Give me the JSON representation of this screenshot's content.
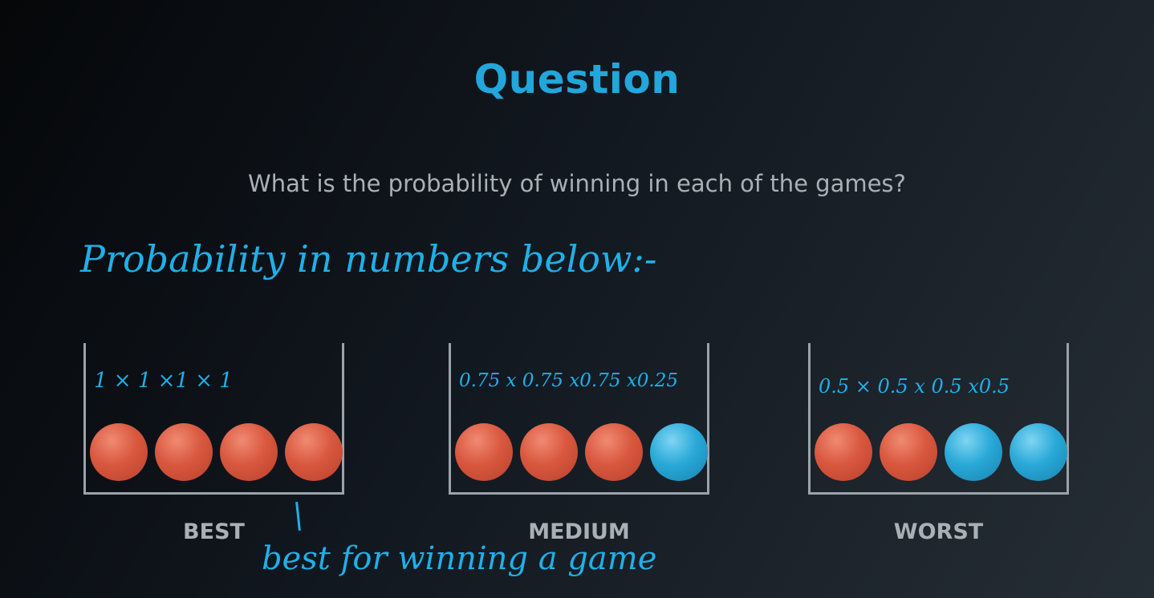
{
  "slide": {
    "title": "Question",
    "question": "What is the probability of winning in each of the games?"
  },
  "annotations": {
    "heading": "Probability in numbers below:-",
    "note": "best for winning a game"
  },
  "buckets": [
    {
      "label": "BEST",
      "handwritten": "1 × 1 ×1 × 1",
      "balls": [
        "red",
        "red",
        "red",
        "red"
      ]
    },
    {
      "label": "MEDIUM",
      "handwritten": "0.75 x 0.75 x0.75 x0.25",
      "balls": [
        "red",
        "red",
        "red",
        "blue"
      ]
    },
    {
      "label": "WORST",
      "handwritten": "0.5 × 0.5 x 0.5 x0.5",
      "balls": [
        "red",
        "red",
        "blue",
        "blue"
      ]
    }
  ],
  "colors": {
    "title": "#22a6db",
    "annotation": "#1fb0e8",
    "red_ball": "#d9583f",
    "blue_ball": "#2aa9d8"
  }
}
